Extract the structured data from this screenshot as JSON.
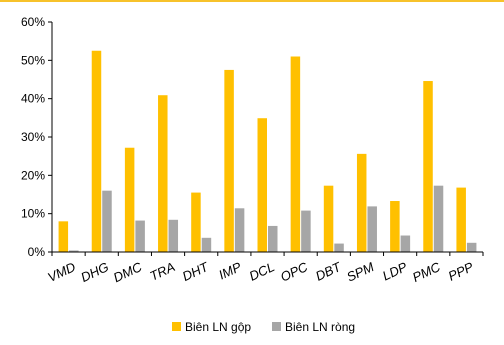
{
  "colors": {
    "top_rule": "#f7c22b",
    "axis": "#000000"
  },
  "chart_data": {
    "type": "bar",
    "title": "",
    "xlabel": "",
    "ylabel": "",
    "categories": [
      "VMD",
      "DHG",
      "DMC",
      "TRA",
      "DHT",
      "IMP",
      "DCL",
      "OPC",
      "DBT",
      "SPM",
      "LDP",
      "PMC",
      "PPP"
    ],
    "series": [
      {
        "name": "Biên LN gộp",
        "color": "#ffc000",
        "values": [
          8,
          52.5,
          27.2,
          40.9,
          15.5,
          47.5,
          34.9,
          51,
          17.3,
          25.6,
          13.3,
          44.6,
          16.8
        ]
      },
      {
        "name": "Biên LN ròng",
        "color": "#a6a6a6",
        "values": [
          0.4,
          16,
          8.2,
          8.4,
          3.7,
          11.4,
          6.8,
          10.8,
          2.2,
          11.9,
          4.3,
          17.3,
          2.4
        ]
      }
    ],
    "y_ticks": [
      "0%",
      "10%",
      "20%",
      "30%",
      "40%",
      "50%",
      "60%"
    ],
    "ylim": [
      0,
      60
    ],
    "grid": false,
    "legend_position": "bottom"
  }
}
